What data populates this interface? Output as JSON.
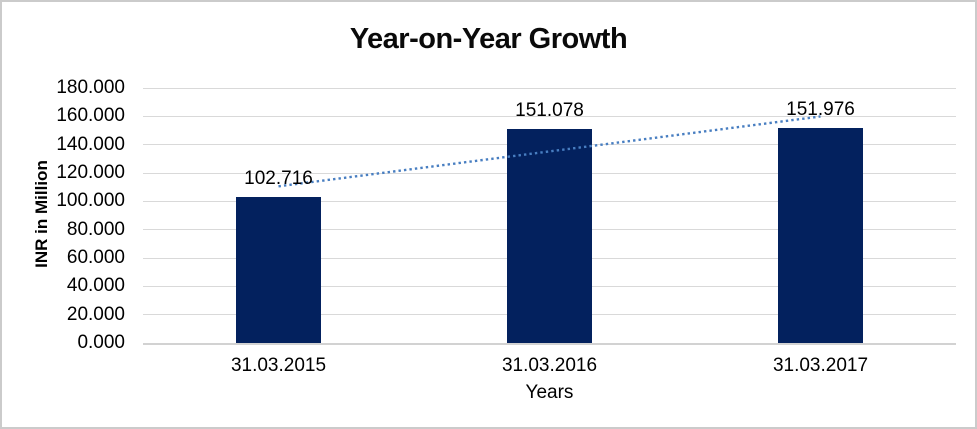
{
  "window": {
    "background": "#ffffff",
    "border_color": "#cbcbcb"
  },
  "chart_data": {
    "type": "bar",
    "title": "Year-on-Year Growth",
    "xlabel": "Years",
    "ylabel": "INR in Million",
    "categories": [
      "31.03.2015",
      "31.03.2016",
      "31.03.2017"
    ],
    "values": [
      102.716,
      151.078,
      151.976
    ],
    "data_labels": [
      "102.716",
      "151.078",
      "151.976"
    ],
    "ytick_labels": [
      "180.000",
      "160.000",
      "140.000",
      "120.000",
      "100.000",
      "80.000",
      "60.000",
      "40.000",
      "20.000",
      "0.000"
    ],
    "ylim": [
      0,
      180
    ],
    "ytick_step": 20,
    "grid": true,
    "legend": "none",
    "series_name": "INR in Million",
    "trendline": {
      "style": "dotted",
      "shape": "linear",
      "start_value": 110.6,
      "end_value": 159.9
    },
    "colors": {
      "bar": "#03215E",
      "trendline": "#487EC1",
      "gridline": "#D9D9D9",
      "axis_line": "#D2D2D2",
      "text": "#000000"
    }
  }
}
